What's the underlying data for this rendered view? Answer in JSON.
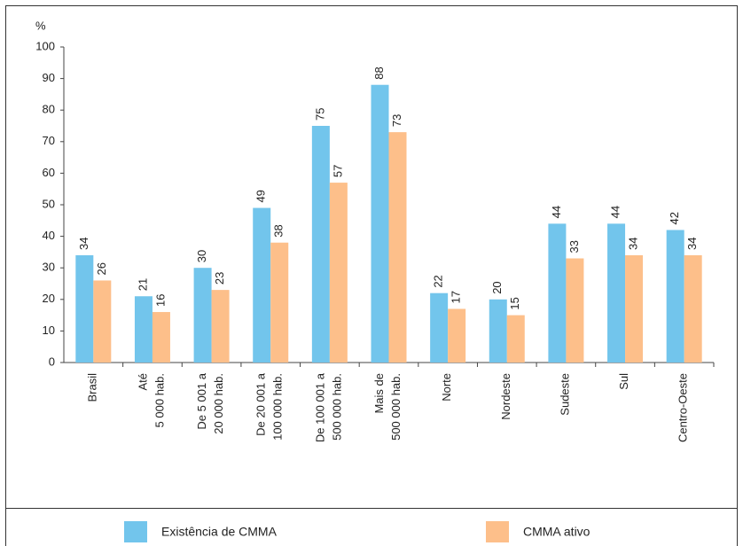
{
  "chart_data": {
    "type": "bar",
    "y_label": "%",
    "categories": [
      "Brasil",
      "Até\n5 000 hab.",
      "De 5 001 a\n20 000 hab.",
      "De 20 001 a\n100 000 hab.",
      "De 100 001 a\n500 000 hab.",
      "Mais de\n500 000 hab.",
      "Norte",
      "Nordeste",
      "Sudeste",
      "Sul",
      "Centro-Oeste"
    ],
    "series": [
      {
        "name": "Existência de CMMA",
        "color": "#72c5ec",
        "values": [
          34,
          21,
          30,
          49,
          75,
          88,
          22,
          20,
          44,
          44,
          42
        ]
      },
      {
        "name": "CMMA ativo",
        "color": "#fdbf8a",
        "values": [
          26,
          16,
          23,
          38,
          57,
          73,
          17,
          15,
          33,
          34,
          34
        ]
      }
    ],
    "ylim": [
      0,
      100
    ],
    "yticks": [
      0,
      10,
      20,
      30,
      40,
      50,
      60,
      70,
      80,
      90,
      100
    ],
    "legend": "bottom"
  }
}
